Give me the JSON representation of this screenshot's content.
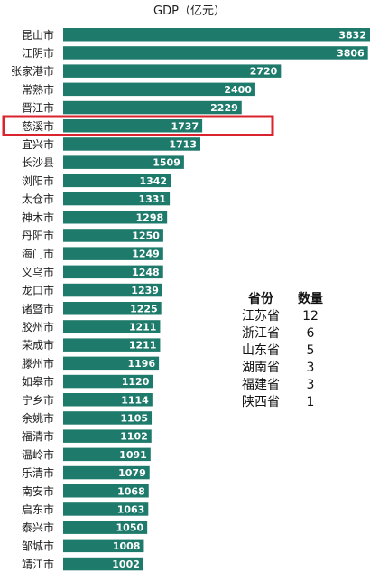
{
  "chart_data": {
    "type": "bar",
    "orientation": "horizontal",
    "title": "GDP（亿元）",
    "categories": [
      "昆山市",
      "江阴市",
      "张家港市",
      "常熟市",
      "晋江市",
      "慈溪市",
      "宜兴市",
      "长沙县",
      "浏阳市",
      "太仓市",
      "神木市",
      "丹阳市",
      "海门市",
      "义乌市",
      "龙口市",
      "诸暨市",
      "胶州市",
      "荣成市",
      "滕州市",
      "如皋市",
      "宁乡市",
      "余姚市",
      "福清市",
      "温岭市",
      "乐清市",
      "南安市",
      "启东市",
      "泰兴市",
      "邹城市",
      "靖江市"
    ],
    "values": [
      3832,
      3806,
      2720,
      2400,
      2229,
      1737,
      1713,
      1509,
      1342,
      1331,
      1298,
      1250,
      1249,
      1248,
      1239,
      1225,
      1211,
      1211,
      1196,
      1120,
      1114,
      1105,
      1102,
      1091,
      1079,
      1068,
      1063,
      1050,
      1008,
      1002
    ],
    "highlight_category": "慈溪市",
    "bar_color": "#1e7b6b",
    "highlight_color": "#d9232e",
    "data_labels": true,
    "grid": false,
    "legend": "none"
  },
  "province_table": {
    "headers": [
      "省份",
      "数量"
    ],
    "rows": [
      [
        "江苏省",
        "12"
      ],
      [
        "浙江省",
        "6"
      ],
      [
        "山东省",
        "5"
      ],
      [
        "湖南省",
        "3"
      ],
      [
        "福建省",
        "3"
      ],
      [
        "陕西省",
        "1"
      ]
    ]
  }
}
